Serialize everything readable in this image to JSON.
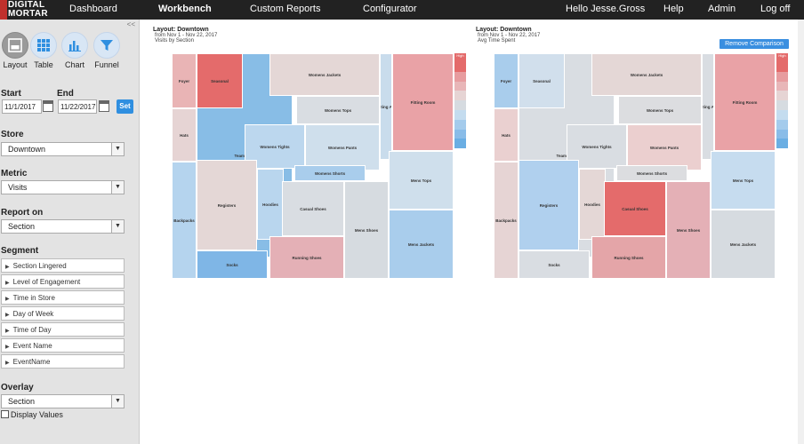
{
  "brand": {
    "line1": "DIGITAL",
    "line2": "MORTAR"
  },
  "nav": {
    "dashboard": "Dashboard",
    "workbench": "Workbench",
    "custom_reports": "Custom Reports",
    "configurator": "Configurator",
    "greeting": "Hello Jesse.Gross",
    "help": "Help",
    "admin": "Admin",
    "logoff": "Log off"
  },
  "sidebar": {
    "collapse": "<<",
    "tools": [
      {
        "label": "Layout",
        "icon": "layout-icon"
      },
      {
        "label": "Table",
        "icon": "table-icon"
      },
      {
        "label": "Chart",
        "icon": "chart-icon"
      },
      {
        "label": "Funnel",
        "icon": "funnel-icon"
      }
    ],
    "start_label": "Start",
    "end_label": "End",
    "start_value": "11/1/2017",
    "end_value": "11/22/2017",
    "set_label": "Set",
    "store_label": "Store",
    "store_value": "Downtown",
    "metric_label": "Metric",
    "metric_value": "Visits",
    "report_label": "Report on",
    "report_value": "Section",
    "segment_label": "Segment",
    "segments": [
      "Section Lingered",
      "Level of Engagement",
      "Time in Store",
      "Day of Week",
      "Time of Day",
      "Event Name",
      "EventName"
    ],
    "overlay_label": "Overlay",
    "overlay_value": "Section",
    "display_values": "Display Values"
  },
  "panels": {
    "left": {
      "title": "Layout: Downtown",
      "range": "from Nov 1 - Nov 22, 2017",
      "metric": "Visits by Section"
    },
    "right": {
      "title": "Layout: Downtown",
      "range": "from Nov 1 - Nov 22, 2017",
      "metric": "Avg Time Spent"
    },
    "remove_button": "Remove Comparison",
    "legend_high": "High"
  },
  "colors": {
    "red_strong": "#e46b6b",
    "red_mid": "#e9a2a6",
    "red_light": "#e8d3d3",
    "neutral": "#d6dbe0",
    "blue_light": "#b9d6ee",
    "blue_mid": "#8dbde5",
    "blue_strong": "#6aaee3"
  },
  "cells_left": [
    {
      "label": "Foyer",
      "color": "#e9b4b5"
    },
    {
      "label": "Seasonal",
      "color": "#e46b6b"
    },
    {
      "label": "Team Gear",
      "color": "#88bde6"
    },
    {
      "label": "Womens Jackets",
      "color": "#e4d7d6"
    },
    {
      "label": "Waiting Area",
      "color": "#c9dcec"
    },
    {
      "label": "Fitting Room",
      "color": "#e9a2a6"
    },
    {
      "label": "Womens Tops",
      "color": "#d9dde2"
    },
    {
      "label": "Hats",
      "color": "#e6d4d4"
    },
    {
      "label": "Womens Tights",
      "color": "#bcd7ee"
    },
    {
      "label": "Womens Pants",
      "color": "#cfdfec"
    },
    {
      "label": "Womens Shorts",
      "color": "#a9cdec"
    },
    {
      "label": "Mens Tops",
      "color": "#cfdfec"
    },
    {
      "label": "Registers",
      "color": "#e4d7d6"
    },
    {
      "label": "Hoodies",
      "color": "#b9d6ee"
    },
    {
      "label": "Casual Shoes",
      "color": "#d9dde2"
    },
    {
      "label": "Backpacks",
      "color": "#b5d4ee"
    },
    {
      "label": "Mens Shoes",
      "color": "#d6dbe0"
    },
    {
      "label": "Mens Jackets",
      "color": "#a9cdec"
    },
    {
      "label": "Socks",
      "color": "#7fb6e6"
    },
    {
      "label": "Running Shoes",
      "color": "#e4b0b6"
    }
  ],
  "cells_right": [
    {
      "label": "Foyer",
      "color": "#a9cdec"
    },
    {
      "label": "Seasonal",
      "color": "#d1dfec"
    },
    {
      "label": "Team Gear",
      "color": "#d9dde2"
    },
    {
      "label": "Womens Jackets",
      "color": "#e4d7d6"
    },
    {
      "label": "Waiting Area",
      "color": "#d9dde2"
    },
    {
      "label": "Fitting Room",
      "color": "#e9a2a6"
    },
    {
      "label": "Womens Tops",
      "color": "#dcdde0"
    },
    {
      "label": "Hats",
      "color": "#ead0d0"
    },
    {
      "label": "Womens Tights",
      "color": "#d9dde2"
    },
    {
      "label": "Womens Pants",
      "color": "#ebcfcf"
    },
    {
      "label": "Womens Shorts",
      "color": "#dcdde0"
    },
    {
      "label": "Mens Tops",
      "color": "#c6dcef"
    },
    {
      "label": "Registers",
      "color": "#b0d0ee"
    },
    {
      "label": "Hoodies",
      "color": "#e4d7d6"
    },
    {
      "label": "Casual Shoes",
      "color": "#e46b6b"
    },
    {
      "label": "Backpacks",
      "color": "#e6d4d4"
    },
    {
      "label": "Mens Shoes",
      "color": "#e4b0b6"
    },
    {
      "label": "Mens Jackets",
      "color": "#d6dbe0"
    },
    {
      "label": "Socks",
      "color": "#d9dde2"
    },
    {
      "label": "Running Shoes",
      "color": "#e4a5a8"
    }
  ],
  "legend_colors": [
    "#e46b6b",
    "#e79c9f",
    "#e8b6b8",
    "#e6d4d4",
    "#d6dbe0",
    "#c4dcef",
    "#a4cbec",
    "#89bce8",
    "#6aaee3"
  ]
}
